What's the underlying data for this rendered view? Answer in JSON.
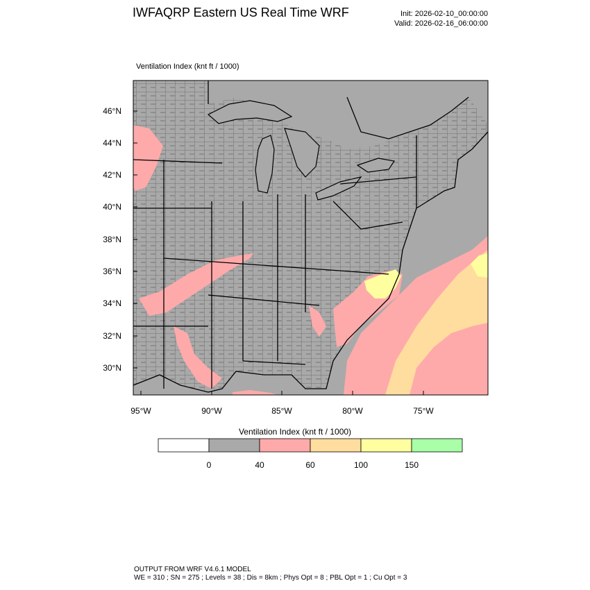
{
  "header": {
    "title": "IWFAQRP Eastern US Real Time WRF",
    "init": "Init: 2026-02-10_00:00:00",
    "valid": "Valid: 2026-02-16_06:00:00"
  },
  "map": {
    "field_label": "Ventilation Index   (knt ft / 1000)",
    "lat_labels": [
      "46°N",
      "44°N",
      "42°N",
      "40°N",
      "38°N",
      "36°N",
      "34°N",
      "32°N",
      "30°N"
    ],
    "lon_labels": [
      "95°W",
      "90°W",
      "85°W",
      "80°W",
      "75°W"
    ],
    "colors": {
      "land_default": "#a9a9a9",
      "ocean_default": "#a9a9a9",
      "low": "#ffaaaa",
      "mid": "#ffdd9e",
      "high": "#ffffa0",
      "boundary": "#000000"
    }
  },
  "colorbar": {
    "title": "Ventilation Index  (knt ft / 1000)",
    "bins": [
      {
        "color": "#ffffff"
      },
      {
        "color": "#a9a9a9"
      },
      {
        "color": "#ffaaaa"
      },
      {
        "color": "#ffdd9e"
      },
      {
        "color": "#ffffa0"
      },
      {
        "color": "#a8ffa8"
      }
    ],
    "tick_labels": [
      "0",
      "40",
      "60",
      "100",
      "150"
    ]
  },
  "footer": {
    "line1": "OUTPUT FROM WRF V4.6.1 MODEL",
    "line2": "WE = 310 ; SN = 275 ; Levels = 38 ; Dis = 8km ; Phys Opt = 8 ; PBL Opt = 1 ; Cu Opt = 3"
  }
}
